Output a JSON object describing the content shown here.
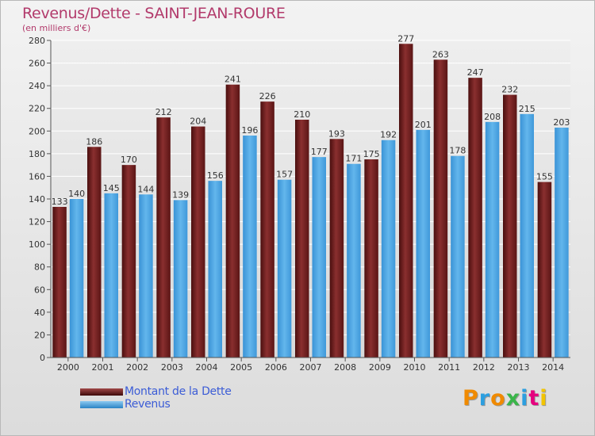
{
  "header": {
    "title": "Revenus/Dette - SAINT-JEAN-ROURE",
    "subtitle": "(en milliers d'€)"
  },
  "logo": {
    "text": "Proxiti"
  },
  "colors": {
    "dette": "#6b1c1c",
    "revenus": "#4aa3e0",
    "logo_letters": [
      "#f08a00",
      "#2c9fe0",
      "#f08a00",
      "#3ab54a",
      "#2c9fe0",
      "#e6007e",
      "#f2c400"
    ]
  },
  "chart_data": {
    "type": "bar",
    "categories": [
      "2000",
      "2001",
      "2002",
      "2003",
      "2004",
      "2005",
      "2006",
      "2007",
      "2008",
      "2009",
      "2010",
      "2011",
      "2012",
      "2013",
      "2014"
    ],
    "series": [
      {
        "name": "Montant de la Dette",
        "values": [
          133,
          186,
          170,
          212,
          204,
          241,
          226,
          210,
          193,
          175,
          277,
          263,
          247,
          232,
          155
        ]
      },
      {
        "name": "Revenus",
        "values": [
          140,
          145,
          144,
          139,
          156,
          196,
          157,
          177,
          171,
          192,
          201,
          178,
          208,
          215,
          203
        ]
      }
    ],
    "ylim": [
      0,
      280
    ],
    "yticks": [
      0,
      20,
      40,
      60,
      80,
      100,
      120,
      140,
      160,
      180,
      200,
      220,
      240,
      260,
      280
    ],
    "grid": true,
    "legend_position": "bottom-left"
  }
}
